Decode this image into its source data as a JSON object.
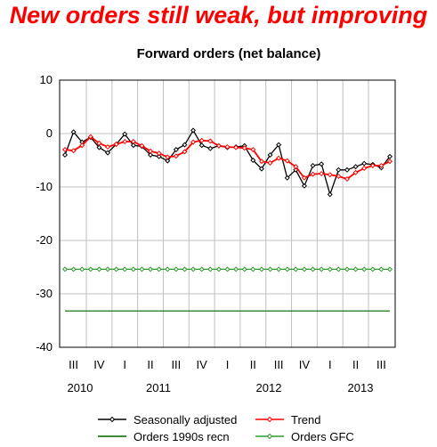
{
  "headline": "New orders still weak, but improving",
  "chart_data": {
    "type": "line",
    "title": "Forward orders (net balance)",
    "xlabel": "",
    "ylabel": "",
    "ylim": [
      -40,
      10
    ],
    "y_ticks": [
      10,
      0,
      -10,
      -20,
      -30,
      -40
    ],
    "grid": true,
    "legend_position": "bottom",
    "quarters": [
      "III",
      "IV",
      "I",
      "II",
      "III",
      "IV",
      "I",
      "II",
      "III",
      "IV",
      "I",
      "II",
      "III"
    ],
    "years": [
      "2010",
      "2011",
      "2012",
      "2013"
    ],
    "x_range": [
      "2010-07",
      "2013-09"
    ],
    "series": [
      {
        "name": "Seasonally adjusted",
        "color": "#000000",
        "marker": "diamond",
        "x": [
          "2010-07",
          "2010-08",
          "2010-09",
          "2010-10",
          "2010-11",
          "2010-12",
          "2011-01",
          "2011-02",
          "2011-03",
          "2011-04",
          "2011-05",
          "2011-06",
          "2011-07",
          "2011-08",
          "2011-09",
          "2011-10",
          "2011-11",
          "2011-12",
          "2012-01",
          "2012-02",
          "2012-03",
          "2012-04",
          "2012-05",
          "2012-06",
          "2012-07",
          "2012-08",
          "2012-09",
          "2012-10",
          "2012-11",
          "2012-12",
          "2013-01",
          "2013-02",
          "2013-03",
          "2013-04",
          "2013-05",
          "2013-06",
          "2013-07",
          "2013-08",
          "2013-09"
        ],
        "values": [
          -4.0,
          0.3,
          -1.6,
          -0.7,
          -2.6,
          -3.6,
          -2.0,
          -0.1,
          -2.2,
          -2.4,
          -4.0,
          -4.3,
          -5.1,
          -3.0,
          -2.1,
          0.6,
          -2.2,
          -2.8,
          -2.3,
          -2.6,
          -2.5,
          -2.3,
          -5.0,
          -6.6,
          -4.0,
          -2.1,
          -8.3,
          -6.8,
          -9.8,
          -6.0,
          -5.7,
          -11.4,
          -6.8,
          -6.8,
          -6.2,
          -5.6,
          -5.8,
          -6.4,
          -4.3
        ]
      },
      {
        "name": "Trend",
        "color": "#ff0000",
        "marker": "diamond",
        "x": [
          "2010-07",
          "2010-08",
          "2010-09",
          "2010-10",
          "2010-11",
          "2010-12",
          "2011-01",
          "2011-02",
          "2011-03",
          "2011-04",
          "2011-05",
          "2011-06",
          "2011-07",
          "2011-08",
          "2011-09",
          "2011-10",
          "2011-11",
          "2011-12",
          "2012-01",
          "2012-02",
          "2012-03",
          "2012-04",
          "2012-05",
          "2012-06",
          "2012-07",
          "2012-08",
          "2012-09",
          "2012-10",
          "2012-11",
          "2012-12",
          "2013-01",
          "2013-02",
          "2013-03",
          "2013-04",
          "2013-05",
          "2013-06",
          "2013-07",
          "2013-08",
          "2013-09"
        ],
        "values": [
          -3.0,
          -3.2,
          -2.2,
          -0.6,
          -1.8,
          -2.5,
          -2.0,
          -1.5,
          -1.5,
          -2.3,
          -3.3,
          -3.7,
          -4.4,
          -4.2,
          -3.4,
          -1.6,
          -1.3,
          -1.4,
          -2.3,
          -2.5,
          -2.6,
          -2.7,
          -3.0,
          -5.2,
          -5.5,
          -4.6,
          -5.1,
          -6.2,
          -8.3,
          -7.6,
          -7.5,
          -7.7,
          -8.0,
          -8.5,
          -7.3,
          -6.5,
          -6.0,
          -6.0,
          -5.2
        ]
      },
      {
        "name": "Orders 1990s recn",
        "color": "#006400",
        "marker": "none",
        "x": [
          "2010-07",
          "2013-09"
        ],
        "values": [
          -33.2,
          -33.2
        ]
      },
      {
        "name": "Orders GFC",
        "color": "#2e9a2e",
        "marker": "diamond",
        "x": [
          "2010-07",
          "2010-08",
          "2010-09",
          "2010-10",
          "2010-11",
          "2010-12",
          "2011-01",
          "2011-02",
          "2011-03",
          "2011-04",
          "2011-05",
          "2011-06",
          "2011-07",
          "2011-08",
          "2011-09",
          "2011-10",
          "2011-11",
          "2011-12",
          "2012-01",
          "2012-02",
          "2012-03",
          "2012-04",
          "2012-05",
          "2012-06",
          "2012-07",
          "2012-08",
          "2012-09",
          "2012-10",
          "2012-11",
          "2012-12",
          "2013-01",
          "2013-02",
          "2013-03",
          "2013-04",
          "2013-05",
          "2013-06",
          "2013-07",
          "2013-08",
          "2013-09"
        ],
        "values": [
          -25.4,
          -25.4,
          -25.4,
          -25.4,
          -25.4,
          -25.4,
          -25.4,
          -25.4,
          -25.4,
          -25.4,
          -25.4,
          -25.4,
          -25.4,
          -25.4,
          -25.4,
          -25.4,
          -25.4,
          -25.4,
          -25.4,
          -25.4,
          -25.4,
          -25.4,
          -25.4,
          -25.4,
          -25.4,
          -25.4,
          -25.4,
          -25.4,
          -25.4,
          -25.4,
          -25.4,
          -25.4,
          -25.4,
          -25.4,
          -25.4,
          -25.4,
          -25.4,
          -25.4,
          -25.4
        ]
      }
    ]
  }
}
